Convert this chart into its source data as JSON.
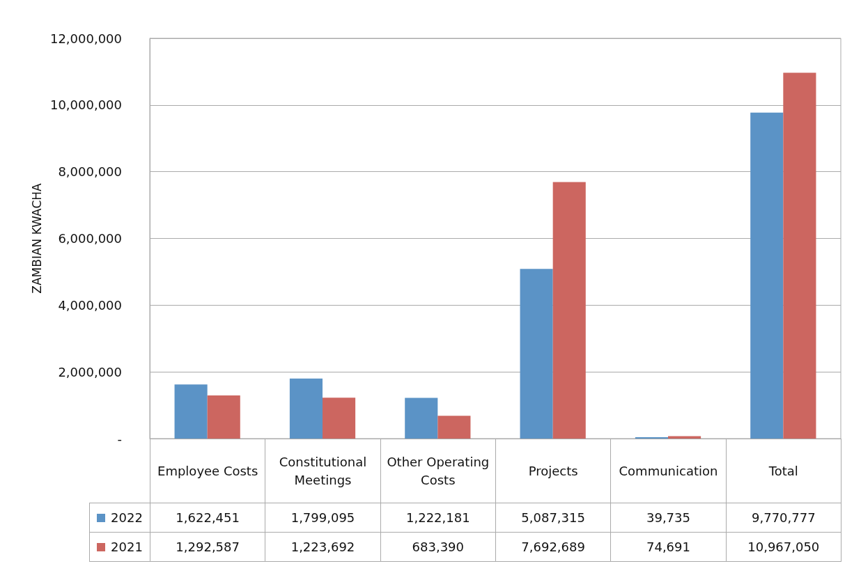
{
  "chart_data": {
    "type": "bar",
    "ylabel": "ZAMBIAN KWACHA",
    "categories": [
      "Employee Costs",
      "Constitutional Meetings",
      "Other Operating Costs",
      "Projects",
      "Communication",
      "Total"
    ],
    "series": [
      {
        "name": "2022",
        "color": "#5b93c6",
        "values": [
          1622451,
          1799095,
          1222181,
          5087315,
          39735,
          9770777
        ],
        "value_labels": [
          "1,622,451",
          "1,799,095",
          "1,222,181",
          "5,087,315",
          "39,735",
          "9,770,777"
        ]
      },
      {
        "name": "2021",
        "color": "#cc6660",
        "values": [
          1292587,
          1223692,
          683390,
          7692689,
          74691,
          10967050
        ],
        "value_labels": [
          "1,292,587",
          "1,223,692",
          "683,390",
          "7,692,689",
          "74,691",
          "10,967,050"
        ]
      }
    ],
    "ylim": [
      0,
      12000000
    ],
    "yticks": [
      {
        "value": 0,
        "label": "-"
      },
      {
        "value": 2000000,
        "label": "2,000,000"
      },
      {
        "value": 4000000,
        "label": "4,000,000"
      },
      {
        "value": 6000000,
        "label": "6,000,000"
      },
      {
        "value": 8000000,
        "label": "8,000,000"
      },
      {
        "value": 10000000,
        "label": "10,000,000"
      },
      {
        "value": 12000000,
        "label": "12,000,000"
      }
    ],
    "grid": "y",
    "legend": "bottom"
  }
}
